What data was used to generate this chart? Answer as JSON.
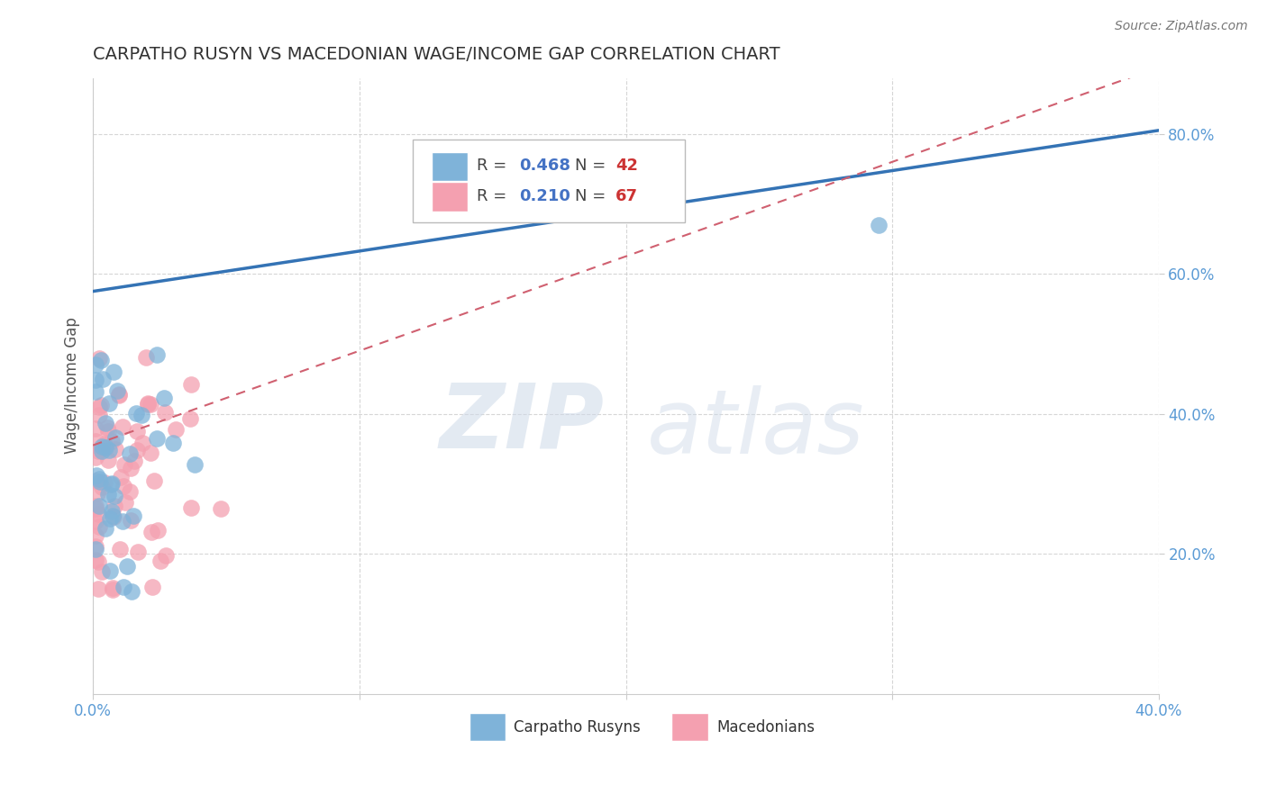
{
  "title": "CARPATHO RUSYN VS MACEDONIAN WAGE/INCOME GAP CORRELATION CHART",
  "source": "Source: ZipAtlas.com",
  "ylabel": "Wage/Income Gap",
  "xlim": [
    0.0,
    0.4
  ],
  "ylim": [
    0.0,
    0.88
  ],
  "xticks": [
    0.0,
    0.1,
    0.2,
    0.3,
    0.4
  ],
  "xtick_labels": [
    "0.0%",
    "",
    "",
    "",
    "40.0%"
  ],
  "yticks": [
    0.2,
    0.4,
    0.6,
    0.8
  ],
  "ytick_labels": [
    "20.0%",
    "40.0%",
    "60.0%",
    "80.0%"
  ],
  "grid_color": "#cccccc",
  "background_color": "#ffffff",
  "blue_color": "#7fb3d9",
  "pink_color": "#f4a0b0",
  "blue_line_color": "#3473b5",
  "pink_line_color": "#d06070",
  "watermark_text": "ZIP",
  "watermark_text2": "atlas",
  "label_color": "#5b9bd5",
  "blue_line_x0": 0.0,
  "blue_line_y0": 0.575,
  "blue_line_x1": 0.4,
  "blue_line_y1": 0.805,
  "pink_line_x0": 0.0,
  "pink_line_y0": 0.355,
  "pink_line_x1": 0.4,
  "pink_line_y1": 0.895,
  "legend_r1": "0.468",
  "legend_n1": "42",
  "legend_r2": "0.210",
  "legend_n2": "67"
}
